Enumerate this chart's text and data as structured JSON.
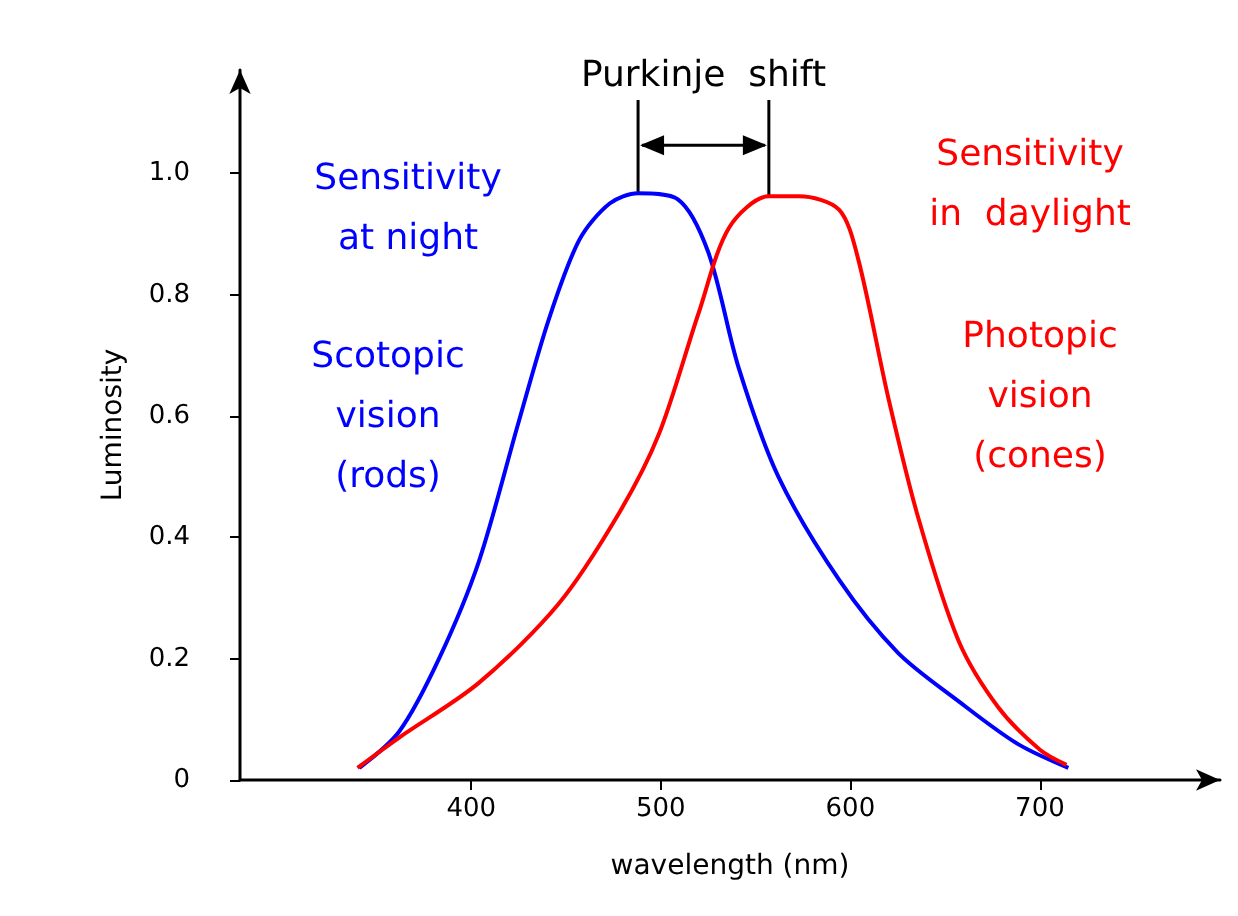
{
  "chart_data": {
    "type": "line",
    "xlabel": "wavelength (nm)",
    "ylabel": "Luminosity",
    "xlim": [
      278,
      795
    ],
    "ylim": [
      0,
      1.17
    ],
    "xticks": [
      400,
      500,
      600,
      700
    ],
    "yticks": [
      0,
      0.2,
      0.4,
      0.6,
      0.8,
      {
        "value": 1,
        "label": "1.0"
      }
    ],
    "grid": false,
    "marker": "none",
    "line_style": "solid",
    "series": [
      {
        "color": "#0000ff",
        "x": [
          341,
          362,
          383,
          404,
          425,
          441,
          457,
          473,
          488,
          509,
          525,
          541,
          562,
          594,
          625,
          657,
          688,
          715
        ],
        "values": [
          0.02,
          0.08,
          0.2,
          0.36,
          0.59,
          0.76,
          0.89,
          0.95,
          0.967,
          0.957,
          0.87,
          0.68,
          0.5,
          0.33,
          0.21,
          0.13,
          0.06,
          0.02
        ]
      },
      {
        "color": "#ff0000",
        "x": [
          340,
          362,
          404,
          446,
          478,
          499,
          520,
          536,
          557,
          573,
          594,
          604,
          620,
          636,
          657,
          678,
          700,
          714
        ],
        "values": [
          0.02,
          0.07,
          0.16,
          0.29,
          0.44,
          0.57,
          0.77,
          0.91,
          0.962,
          0.962,
          0.94,
          0.86,
          0.63,
          0.43,
          0.23,
          0.12,
          0.05,
          0.025
        ]
      }
    ],
    "annotations": [
      {
        "text": "Purkinje  shift",
        "x": 488,
        "y": 0.967
      },
      "Sensitivity\nat night",
      "Scotopic\nvision\n(rods)",
      "Sensitivity\nin  daylight",
      "Photopic\nvision\n(cones)"
    ]
  }
}
